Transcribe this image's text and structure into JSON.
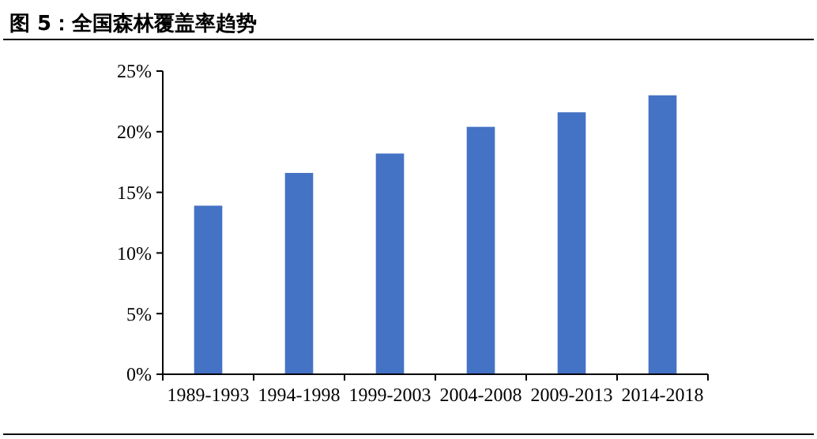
{
  "chart_data": {
    "type": "bar",
    "title": "图 5：全国森林覆盖率趋势",
    "categories": [
      "1989-1993",
      "1994-1998",
      "1999-2003",
      "2004-2008",
      "2009-2013",
      "2014-2018"
    ],
    "values": [
      13.9,
      16.6,
      18.2,
      20.4,
      21.6,
      23.0
    ],
    "color": "#4472c4",
    "ylim": [
      0,
      25
    ],
    "yticks": [
      {
        "value": 0,
        "label": "0%"
      },
      {
        "value": 5,
        "label": "5%"
      },
      {
        "value": 10,
        "label": "10%"
      },
      {
        "value": 15,
        "label": "15%"
      },
      {
        "value": 20,
        "label": "20%"
      },
      {
        "value": 25,
        "label": "25%"
      }
    ],
    "grid": false
  }
}
